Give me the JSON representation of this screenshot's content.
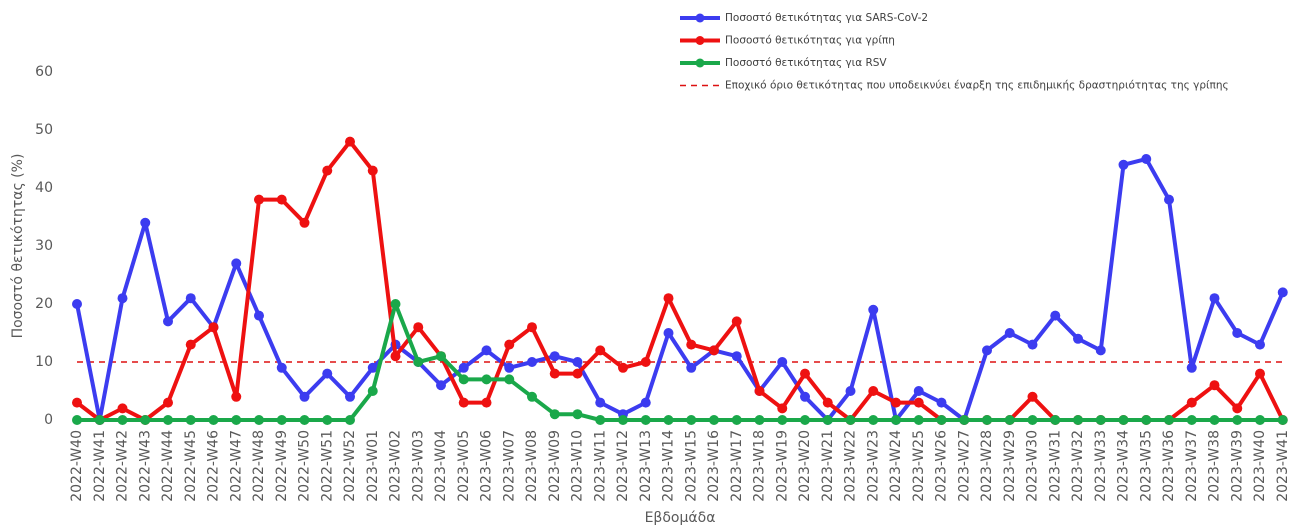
{
  "chart_data": {
    "type": "line",
    "x_label": "Εβδομάδα",
    "y_label": "Ποσοστό θετικότητας (%)",
    "categories": [
      "2022-W40",
      "2022-W41",
      "2022-W42",
      "2022-W43",
      "2022-W44",
      "2022-W45",
      "2022-W46",
      "2022-W47",
      "2022-W48",
      "2022-W49",
      "2022-W50",
      "2022-W51",
      "2022-W52",
      "2023-W01",
      "2023-W02",
      "2023-W03",
      "2023-W04",
      "2023-W05",
      "2023-W06",
      "2023-W07",
      "2023-W08",
      "2023-W09",
      "2023-W10",
      "2023-W11",
      "2023-W12",
      "2023-W13",
      "2023-W14",
      "2023-W15",
      "2023-W16",
      "2023-W17",
      "2023-W18",
      "2023-W19",
      "2023-W20",
      "2023-W21",
      "2023-W22",
      "2023-W23",
      "2023-W24",
      "2023-W25",
      "2023-W26",
      "2023-W27",
      "2023-W28",
      "2023-W29",
      "2023-W30",
      "2023-W31",
      "2023-W32",
      "2023-W33",
      "2023-W34",
      "2023-W35",
      "2023-W36",
      "2023-W37",
      "2023-W38",
      "2023-W39",
      "2023-W40",
      "2023-W41"
    ],
    "series": [
      {
        "name": "Ποσοστό θετικότητας για SARS-CoV-2",
        "color": "#3c3cf0",
        "values": [
          20,
          0,
          21,
          34,
          17,
          21,
          16,
          27,
          18,
          9,
          4,
          8,
          4,
          9,
          13,
          10,
          6,
          9,
          12,
          9,
          10,
          11,
          10,
          3,
          1,
          3,
          15,
          9,
          12,
          11,
          5,
          10,
          4,
          0,
          5,
          19,
          0,
          5,
          3,
          0,
          12,
          15,
          13,
          18,
          14,
          12,
          44,
          45,
          38,
          9,
          21,
          15,
          13,
          22
        ]
      },
      {
        "name": "Ποσοστό θετικότητας για γρίπη",
        "color": "#ee1111",
        "values": [
          3,
          0,
          2,
          0,
          3,
          13,
          16,
          4,
          38,
          38,
          34,
          43,
          48,
          43,
          11,
          16,
          11,
          3,
          3,
          13,
          16,
          8,
          8,
          12,
          9,
          10,
          21,
          13,
          12,
          17,
          5,
          2,
          8,
          3,
          0,
          5,
          3,
          3,
          0,
          0,
          0,
          0,
          4,
          0,
          0,
          0,
          0,
          0,
          0,
          3,
          6,
          2,
          8,
          0
        ]
      },
      {
        "name": "Ποσοστό θετικότητας για RSV",
        "color": "#1aa84a",
        "values": [
          0,
          0,
          0,
          0,
          0,
          0,
          0,
          0,
          0,
          0,
          0,
          0,
          0,
          5,
          20,
          10,
          11,
          7,
          7,
          7,
          4,
          1,
          1,
          0,
          0,
          0,
          0,
          0,
          0,
          0,
          0,
          0,
          0,
          0,
          0,
          0,
          0,
          0,
          0,
          0,
          0,
          0,
          0,
          0,
          0,
          0,
          0,
          0,
          0,
          0,
          0,
          0,
          0,
          0
        ]
      }
    ],
    "threshold": {
      "name": "Εποχικό όριο θετικότητας που υποδεικνύει έναρξη της επιδημικής δραστηριότητας της γρίπης",
      "value": 10,
      "color": "#dd1111"
    },
    "ylim": [
      0,
      60
    ],
    "yticks": [
      0,
      10,
      20,
      30,
      40,
      50,
      60
    ],
    "grid": false
  }
}
